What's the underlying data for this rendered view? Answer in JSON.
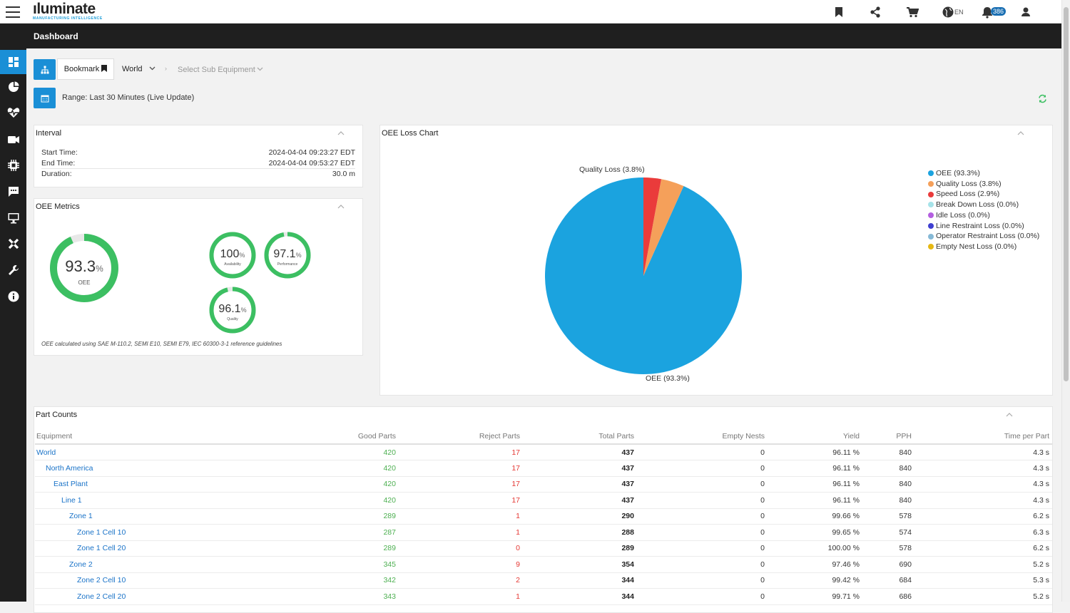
{
  "app": {
    "logo_word": "ıluminate",
    "logo_tagline": "MANUFACTURING INTELLIGENCE",
    "language": "EN",
    "notification_count": "386",
    "page_title": "Dashboard"
  },
  "toolbar": {
    "bookmark_label": "Bookmark",
    "equipment_selected": "World",
    "breadcrumb_separator": "›",
    "sub_equipment_placeholder": "Select Sub Equipment",
    "range_text": "Range:  Last 30 Minutes (Live Update)"
  },
  "colors": {
    "accent": "#1a8fd6",
    "good": "#4caf50",
    "reject": "#e53935",
    "gauge": "#3cbf62"
  },
  "interval": {
    "title": "Interval",
    "rows": [
      {
        "label": "Start Time:",
        "value": "2024-04-04 09:23:27 EDT"
      },
      {
        "label": "End Time:",
        "value": "2024-04-04 09:53:27 EDT"
      },
      {
        "label": "Duration:",
        "value": "30.0 m"
      }
    ]
  },
  "oee_metrics": {
    "title": "OEE Metrics",
    "gauges": [
      {
        "value": "93.3",
        "fraction": 0.933,
        "unit": "%",
        "label": "OEE"
      },
      {
        "value": "100",
        "fraction": 1.0,
        "unit": "%",
        "label": "Availability"
      },
      {
        "value": "97.1",
        "fraction": 0.971,
        "unit": "%",
        "label": "Performance"
      },
      {
        "value": "96.1",
        "fraction": 0.961,
        "unit": "%",
        "label": "Quality"
      }
    ],
    "footnote": "OEE calculated using SAE M-110.2, SEMI E10, SEMI E79, IEC 60300-3-1 reference guidelines"
  },
  "chart_data": {
    "type": "pie",
    "title": "OEE Loss Chart",
    "legend_position": "right",
    "slices": [
      {
        "label": "OEE (93.3%)",
        "value": 93.3,
        "color": "#1ba3df"
      },
      {
        "label": "Quality Loss (3.8%)",
        "value": 3.8,
        "color": "#f5a05a"
      },
      {
        "label": "Speed Loss (2.9%)",
        "value": 2.9,
        "color": "#ea3b3b"
      },
      {
        "label": "Break Down Loss (0.0%)",
        "value": 0.0,
        "color": "#a6e3e9"
      },
      {
        "label": "Idle Loss (0.0%)",
        "value": 0.0,
        "color": "#b45fe0"
      },
      {
        "label": "Line Restraint Loss (0.0%)",
        "value": 0.0,
        "color": "#3f3fd1"
      },
      {
        "label": "Operator Restraint Loss (0.0%)",
        "value": 0.0,
        "color": "#86b9d6"
      },
      {
        "label": "Empty Nest Loss (0.0%)",
        "value": 0.0,
        "color": "#e6b813"
      }
    ],
    "slice_labels": [
      "Quality Loss (3.8%)",
      "OEE (93.3%)"
    ]
  },
  "part_counts": {
    "title": "Part Counts",
    "columns": [
      "Equipment",
      "Good Parts",
      "Reject Parts",
      "Total Parts",
      "Empty Nests",
      "Yield",
      "PPH",
      "Time per Part"
    ],
    "rows": [
      {
        "level": 0,
        "equipment": "World",
        "good": "420",
        "reject": "17",
        "total": "437",
        "empty": "0",
        "yield": "96.11 %",
        "pph": "840",
        "tpp": "4.3 s"
      },
      {
        "level": 1,
        "equipment": "North America",
        "good": "420",
        "reject": "17",
        "total": "437",
        "empty": "0",
        "yield": "96.11 %",
        "pph": "840",
        "tpp": "4.3 s"
      },
      {
        "level": 2,
        "equipment": "East Plant",
        "good": "420",
        "reject": "17",
        "total": "437",
        "empty": "0",
        "yield": "96.11 %",
        "pph": "840",
        "tpp": "4.3 s"
      },
      {
        "level": 3,
        "equipment": "Line 1",
        "good": "420",
        "reject": "17",
        "total": "437",
        "empty": "0",
        "yield": "96.11 %",
        "pph": "840",
        "tpp": "4.3 s"
      },
      {
        "level": 4,
        "equipment": "Zone 1",
        "good": "289",
        "reject": "1",
        "total": "290",
        "empty": "0",
        "yield": "99.66 %",
        "pph": "578",
        "tpp": "6.2 s"
      },
      {
        "level": 5,
        "equipment": "Zone 1 Cell 10",
        "good": "287",
        "reject": "1",
        "total": "288",
        "empty": "0",
        "yield": "99.65 %",
        "pph": "574",
        "tpp": "6.3 s"
      },
      {
        "level": 5,
        "equipment": "Zone 1 Cell 20",
        "good": "289",
        "reject": "0",
        "total": "289",
        "empty": "0",
        "yield": "100.00 %",
        "pph": "578",
        "tpp": "6.2 s"
      },
      {
        "level": 4,
        "equipment": "Zone 2",
        "good": "345",
        "reject": "9",
        "total": "354",
        "empty": "0",
        "yield": "97.46 %",
        "pph": "690",
        "tpp": "5.2 s"
      },
      {
        "level": 5,
        "equipment": "Zone 2 Cell 10",
        "good": "342",
        "reject": "2",
        "total": "344",
        "empty": "0",
        "yield": "99.42 %",
        "pph": "684",
        "tpp": "5.3 s"
      },
      {
        "level": 5,
        "equipment": "Zone 2 Cell 20",
        "good": "343",
        "reject": "1",
        "total": "344",
        "empty": "0",
        "yield": "99.71 %",
        "pph": "686",
        "tpp": "5.2 s"
      }
    ]
  }
}
